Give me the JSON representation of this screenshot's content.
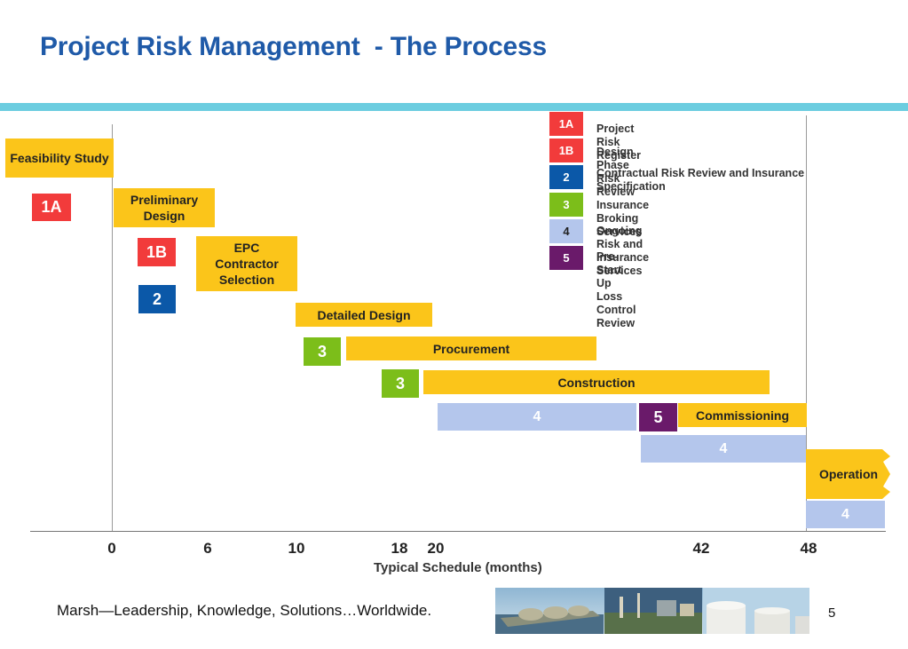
{
  "title": "Project Risk Management  - The Process",
  "legend": [
    {
      "code": "1A",
      "text": "Project Risk Register",
      "color": "#f23b3b"
    },
    {
      "code": "1B",
      "text": "Design Phase Risk Review",
      "color": "#f23b3b"
    },
    {
      "code": "2",
      "text": "Contractual Risk Review and Insurance Specification",
      "color": "#0b58a8"
    },
    {
      "code": "3",
      "text": "Insurance Broking Services",
      "color": "#7cbe1a"
    },
    {
      "code": "4",
      "text": "Ongoing Risk and Insurance Services",
      "color": "#b4c6ec"
    },
    {
      "code": "5",
      "text": "Pre-Start Up Loss Control Review",
      "color": "#6a1a6a"
    }
  ],
  "phases": {
    "feasibility": "Feasibility Study",
    "preliminary": "Preliminary Design",
    "epc": "EPC Contractor Selection",
    "detailed": "Detailed Design",
    "procurement": "Procurement",
    "construction": "Construction",
    "commissioning": "Commissioning",
    "operation": "Operation"
  },
  "markers": {
    "m1A": "1A",
    "m1B": "1B",
    "m2": "2",
    "m3a": "3",
    "m3b": "3",
    "m4a": "4",
    "m5": "5",
    "m4b": "4",
    "m4c": "4"
  },
  "axis": {
    "ticks": [
      "0",
      "6",
      "10",
      "18",
      "20",
      "42",
      "48"
    ],
    "label": "Typical Schedule (months)"
  },
  "footer": {
    "tagline": "Marsh—Leadership, Knowledge, Solutions…Worldwide.",
    "page": "5"
  },
  "colors": {
    "title": "#1f5aa8",
    "band": "#6ccde0",
    "phase": "#fbc51a",
    "red": "#f23b3b",
    "blue": "#0b58a8",
    "green": "#7cbe1a",
    "light_blue": "#b4c6ec",
    "purple": "#6a1a6a"
  }
}
